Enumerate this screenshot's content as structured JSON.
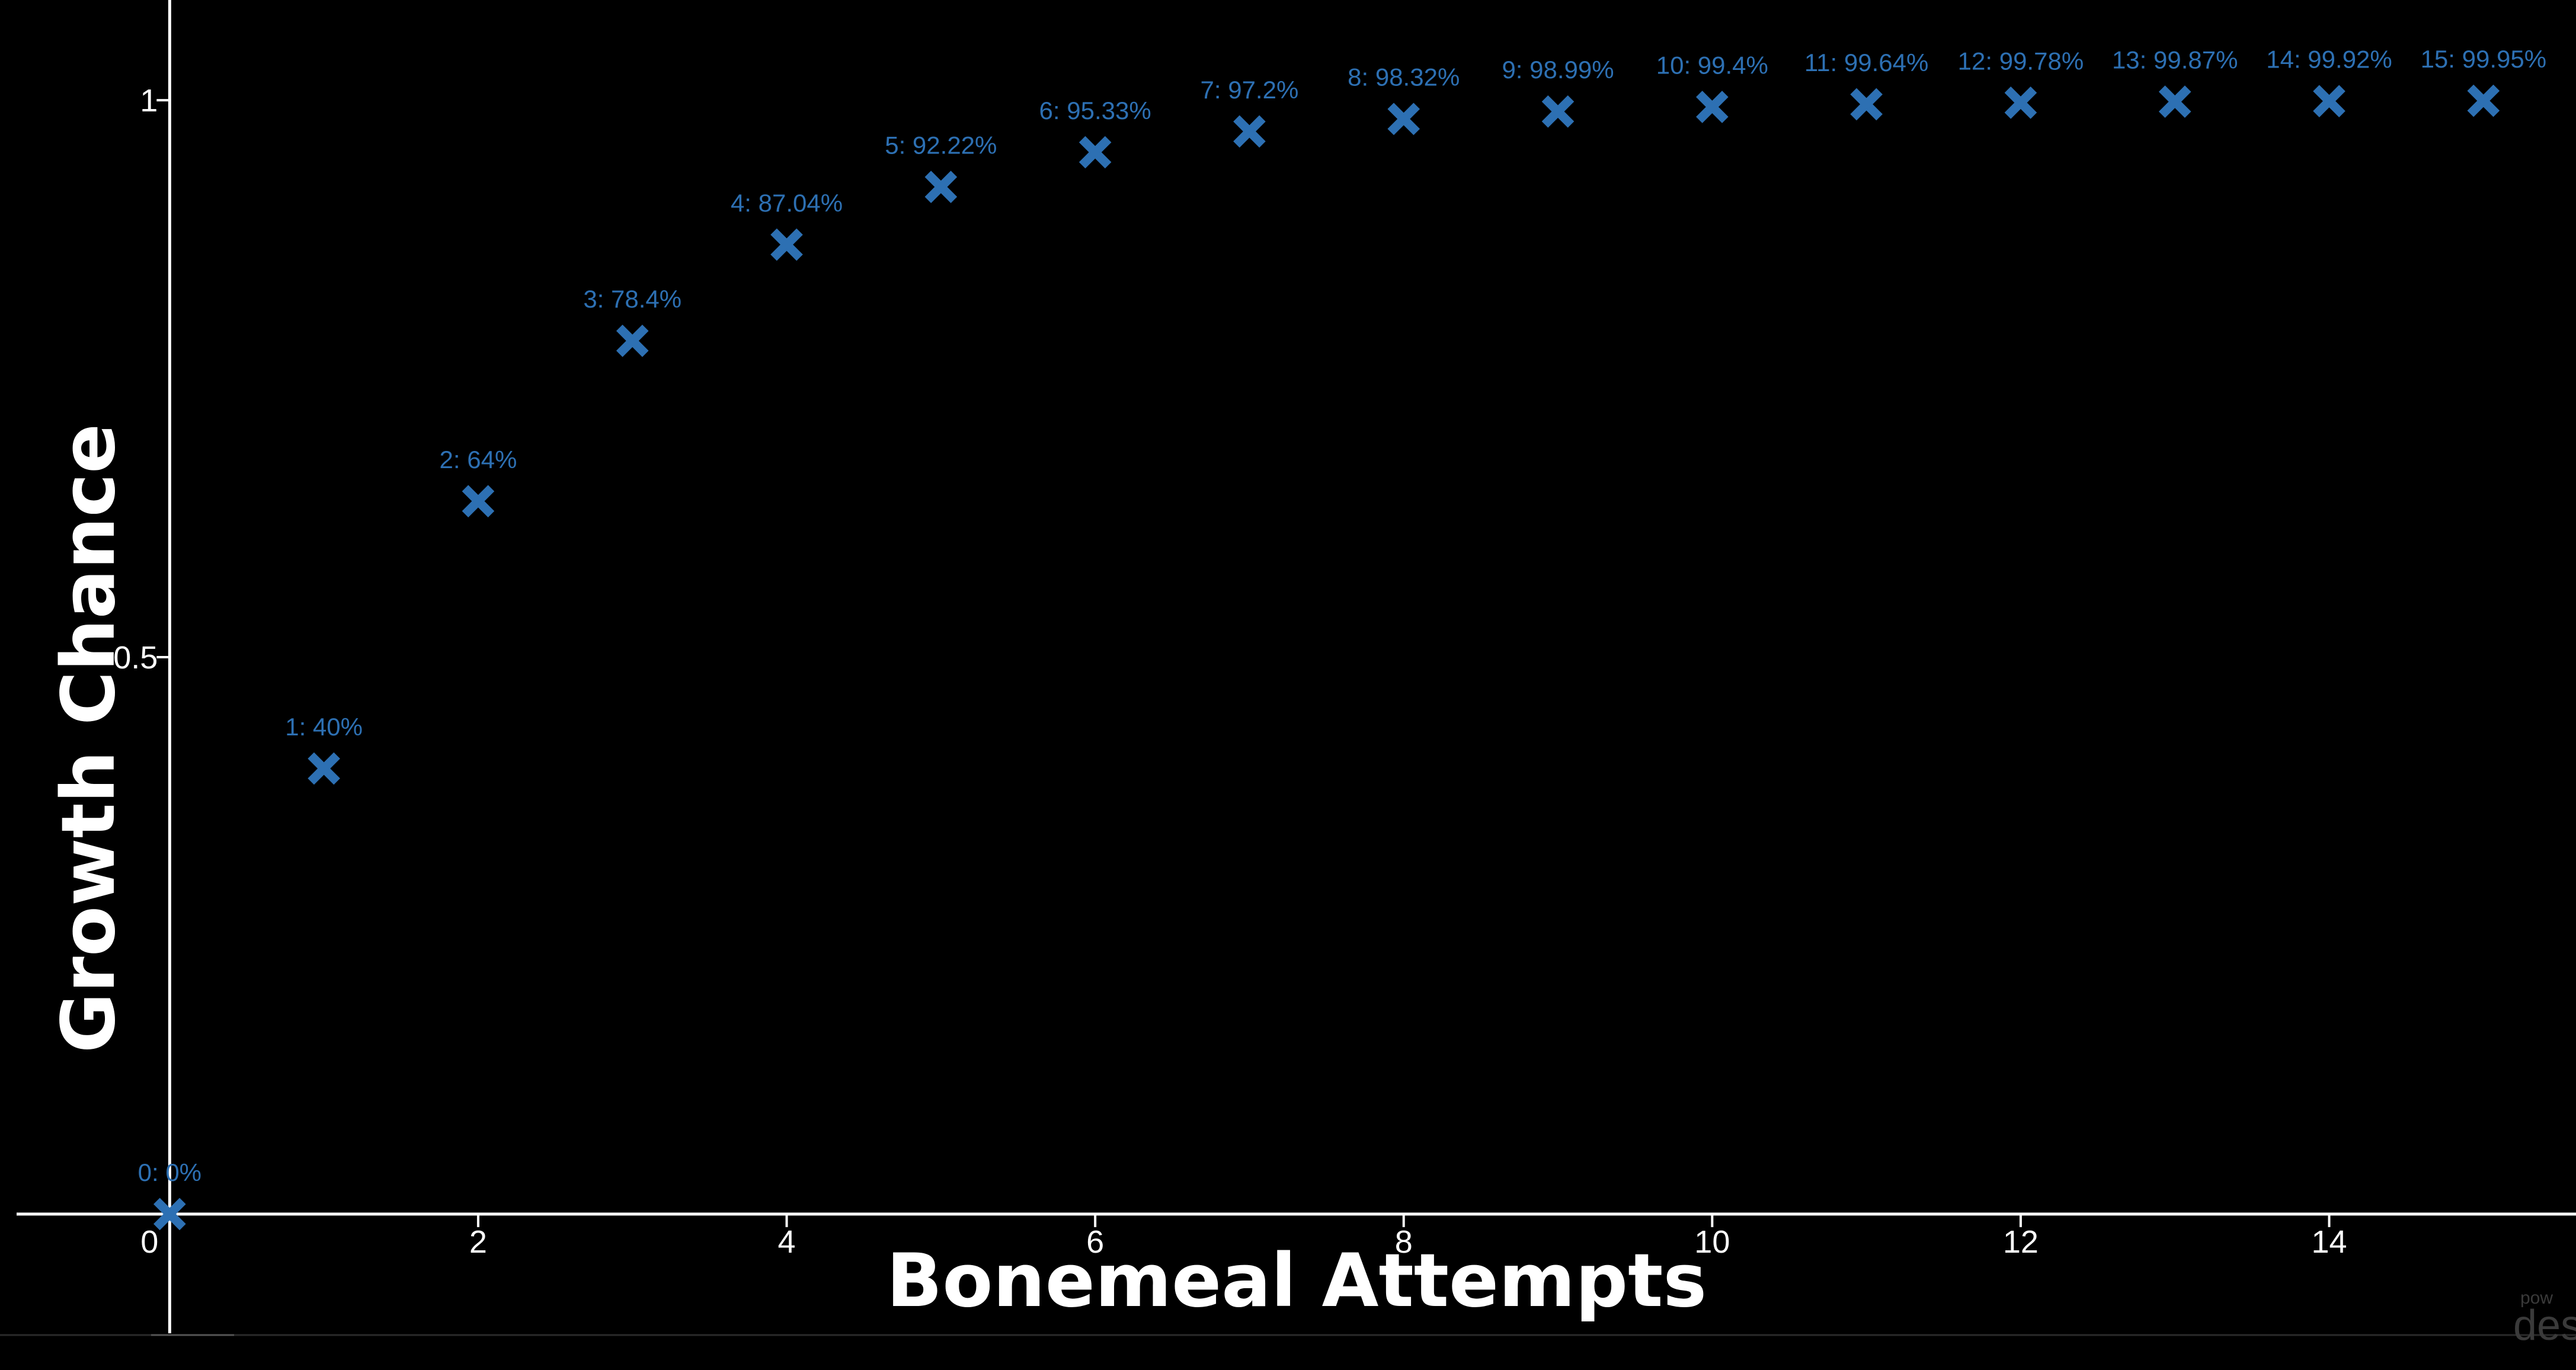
{
  "chart_data": {
    "type": "scatter",
    "xlabel": "Bonemeal Attempts",
    "ylabel": "Growth Chance",
    "xlim": [
      -1.1,
      15.6
    ],
    "ylim": [
      -0.14,
      1.09
    ],
    "x_ticks": [
      {
        "value": 0,
        "label": "0"
      },
      {
        "value": 2,
        "label": "2"
      },
      {
        "value": 4,
        "label": "4"
      },
      {
        "value": 6,
        "label": "6"
      },
      {
        "value": 8,
        "label": "8"
      },
      {
        "value": 10,
        "label": "10"
      },
      {
        "value": 12,
        "label": "12"
      },
      {
        "value": 14,
        "label": "14"
      }
    ],
    "y_ticks": [
      {
        "value": 0.5,
        "label": "0.5"
      },
      {
        "value": 1,
        "label": "1"
      }
    ],
    "grid": false,
    "color": "#2d70b3",
    "series": [
      {
        "marker": "x",
        "points": [
          {
            "x": 0,
            "y": 0,
            "label": "0: 0%"
          },
          {
            "x": 1,
            "y": 0.4,
            "label": "1: 40%"
          },
          {
            "x": 2,
            "y": 0.64,
            "label": "2: 64%"
          },
          {
            "x": 3,
            "y": 0.784,
            "label": "3: 78.4%"
          },
          {
            "x": 4,
            "y": 0.8704,
            "label": "4: 87.04%"
          },
          {
            "x": 5,
            "y": 0.9222,
            "label": "5: 92.22%"
          },
          {
            "x": 6,
            "y": 0.9533,
            "label": "6: 95.33%"
          },
          {
            "x": 7,
            "y": 0.972,
            "label": "7: 97.2%"
          },
          {
            "x": 8,
            "y": 0.9832,
            "label": "8: 98.32%"
          },
          {
            "x": 9,
            "y": 0.9899,
            "label": "9: 98.99%"
          },
          {
            "x": 10,
            "y": 0.994,
            "label": "10: 99.4%"
          },
          {
            "x": 11,
            "y": 0.9964,
            "label": "11: 99.64%"
          },
          {
            "x": 12,
            "y": 0.9978,
            "label": "12: 99.78%"
          },
          {
            "x": 13,
            "y": 0.9987,
            "label": "13: 99.87%"
          },
          {
            "x": 14,
            "y": 0.9992,
            "label": "14: 99.92%"
          },
          {
            "x": 15,
            "y": 0.9995,
            "label": "15: 99.95%"
          }
        ]
      }
    ]
  },
  "watermark": {
    "small": "pow",
    "big": "des"
  }
}
